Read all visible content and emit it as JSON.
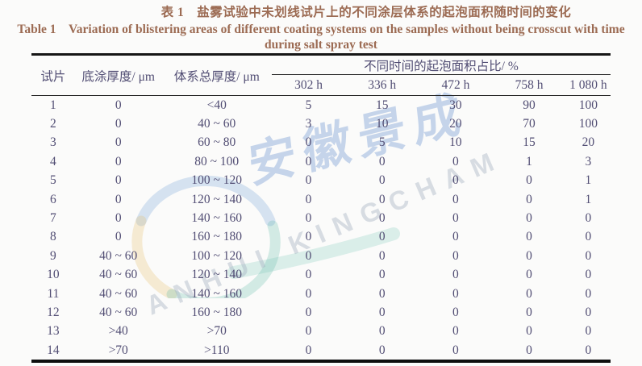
{
  "page": {
    "title_zh": "表 1　盐雾试验中未划线试片上的不同涂层体系的起泡面积随时间的变化",
    "title_en_line1": "Table 1　Variation of blistering areas of different coating systems on the samples without being crosscut with time",
    "title_en_line2": "during salt spray test"
  },
  "table": {
    "col_sample": "试片",
    "col_primer": "底涂厚度/ μm",
    "col_total": "体系总厚度/ μm",
    "col_group": "不同时间的起泡面积占比/ %",
    "times": [
      "302 h",
      "336 h",
      "472 h",
      "758 h",
      "1 080 h"
    ],
    "rows": [
      [
        "1",
        "0",
        "<40",
        "5",
        "15",
        "30",
        "90",
        "100"
      ],
      [
        "2",
        "0",
        "40 ~ 60",
        "3",
        "10",
        "20",
        "70",
        "100"
      ],
      [
        "3",
        "0",
        "60 ~ 80",
        "0",
        "5",
        "10",
        "15",
        "20"
      ],
      [
        "4",
        "0",
        "80 ~ 100",
        "0",
        "0",
        "0",
        "1",
        "3"
      ],
      [
        "5",
        "0",
        "100 ~ 120",
        "0",
        "0",
        "0",
        "0",
        "1"
      ],
      [
        "6",
        "0",
        "120 ~ 140",
        "0",
        "0",
        "0",
        "0",
        "1"
      ],
      [
        "7",
        "0",
        "140 ~ 160",
        "0",
        "0",
        "0",
        "0",
        "0"
      ],
      [
        "8",
        "0",
        "160 ~ 180",
        "0",
        "0",
        "0",
        "0",
        "0"
      ],
      [
        "9",
        "40 ~ 60",
        "100 ~ 120",
        "0",
        "0",
        "0",
        "0",
        "0"
      ],
      [
        "10",
        "40 ~ 60",
        "120 ~ 140",
        "0",
        "0",
        "0",
        "0",
        "0"
      ],
      [
        "11",
        "40 ~ 60",
        "140 ~ 160",
        "0",
        "0",
        "0",
        "0",
        "0"
      ],
      [
        "12",
        "40 ~ 60",
        "160 ~ 180",
        "0",
        "0",
        "0",
        "0",
        "0"
      ],
      [
        "13",
        ">40",
        ">70",
        "0",
        "0",
        "0",
        "0",
        "0"
      ],
      [
        "14",
        ">70",
        ">110",
        "0",
        "0",
        "0",
        "0",
        "0"
      ]
    ]
  },
  "watermark": {
    "zh": "安徽景成",
    "en": "ANHUI KINGCHAM"
  },
  "colors": {
    "title_text": "#9c6b53",
    "table_text": "#524e74",
    "border": "#161616",
    "watermark_blue": "#7a9ed4",
    "logo_blue": "#7fa8da",
    "logo_yellow": "#e5c06b",
    "logo_teal": "#5cb8a6"
  }
}
